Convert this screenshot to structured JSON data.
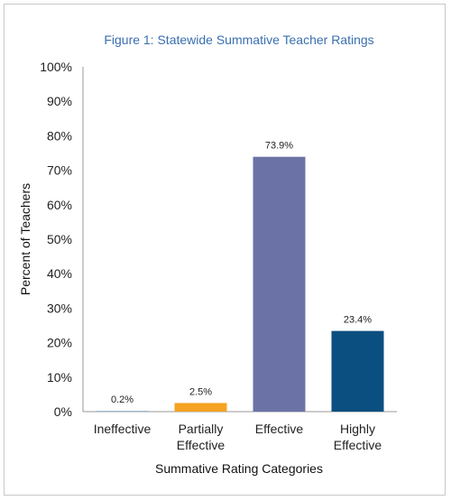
{
  "chart_data": {
    "type": "bar",
    "title": "Figure 1: Statewide Summative Teacher Ratings",
    "xlabel": "Summative Rating Categories",
    "ylabel": "Percent of Teachers",
    "ylim": [
      0,
      100
    ],
    "yticks": [
      "0%",
      "10%",
      "20%",
      "30%",
      "40%",
      "50%",
      "60%",
      "70%",
      "80%",
      "90%",
      "100%"
    ],
    "categories": [
      [
        "Ineffective"
      ],
      [
        "Partially",
        "Effective"
      ],
      [
        "Effective"
      ],
      [
        "Highly",
        "Effective"
      ]
    ],
    "values": [
      0.2,
      2.5,
      73.9,
      23.4
    ],
    "data_labels": [
      "0.2%",
      "2.5%",
      "73.9%",
      "23.4%"
    ],
    "colors": [
      "#7fa6c9",
      "#f4a322",
      "#6b73a6",
      "#0b4f80"
    ],
    "grid": false,
    "legend": "none"
  }
}
